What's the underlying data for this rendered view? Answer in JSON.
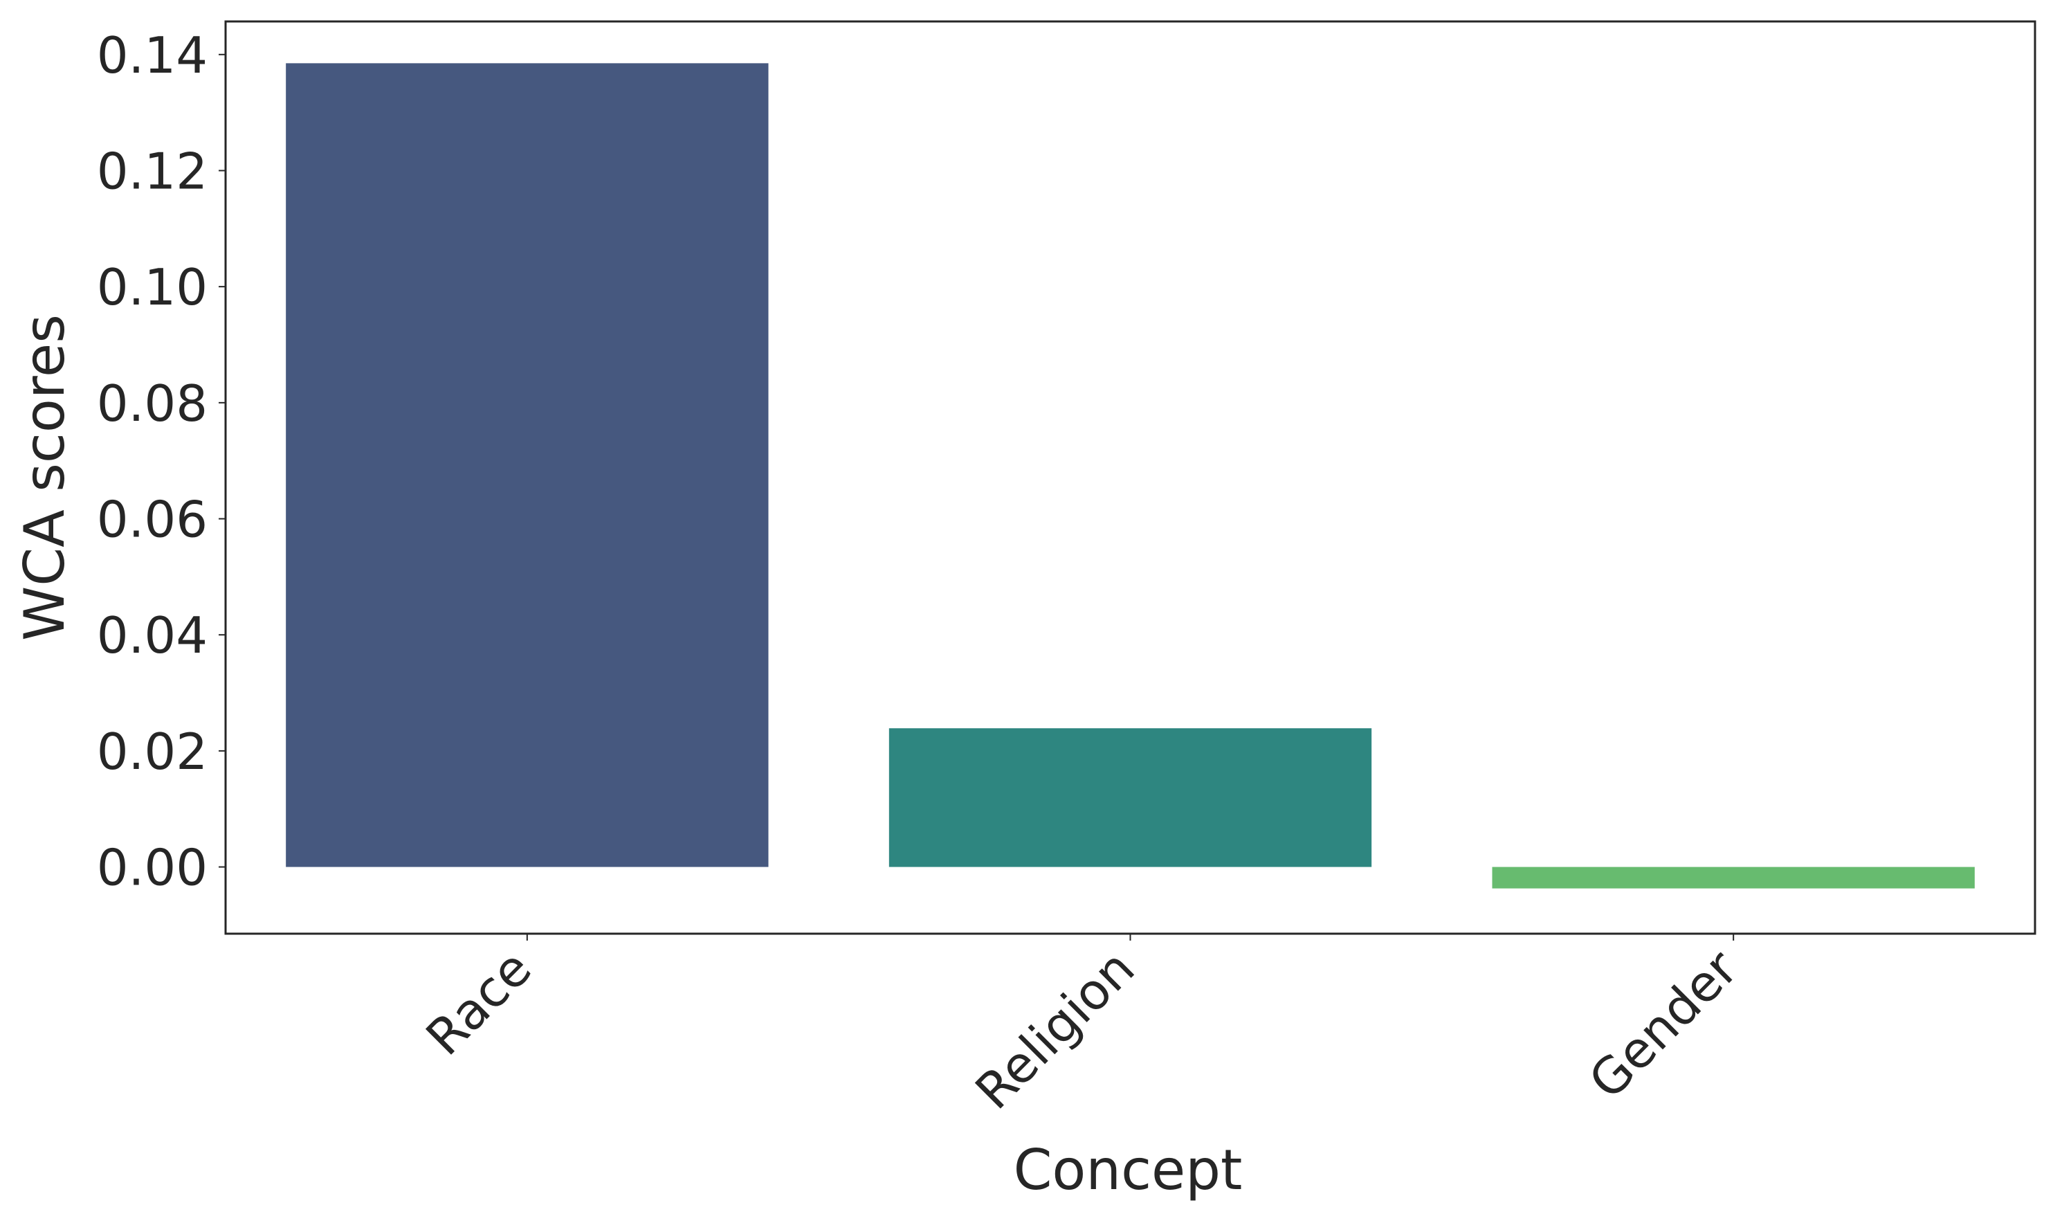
{
  "chart_data": {
    "type": "bar",
    "categories": [
      "Race",
      "Religion",
      "Gender"
    ],
    "values": [
      0.1385,
      0.0239,
      -0.0037
    ],
    "colors": [
      "#46587f",
      "#2e8680",
      "#67bb6f"
    ],
    "xlabel": "Concept",
    "ylabel": "WCA scores",
    "ylim": [
      -0.0115,
      0.1457
    ],
    "yticks": [
      "0.00",
      "0.02",
      "0.04",
      "0.06",
      "0.08",
      "0.10",
      "0.12",
      "0.14"
    ],
    "ytick_values": [
      0,
      0.02,
      0.04,
      0.06,
      0.08,
      0.1,
      0.12,
      0.14
    ],
    "grid": false,
    "legend": "none",
    "xtick_rotation": "45deg"
  }
}
